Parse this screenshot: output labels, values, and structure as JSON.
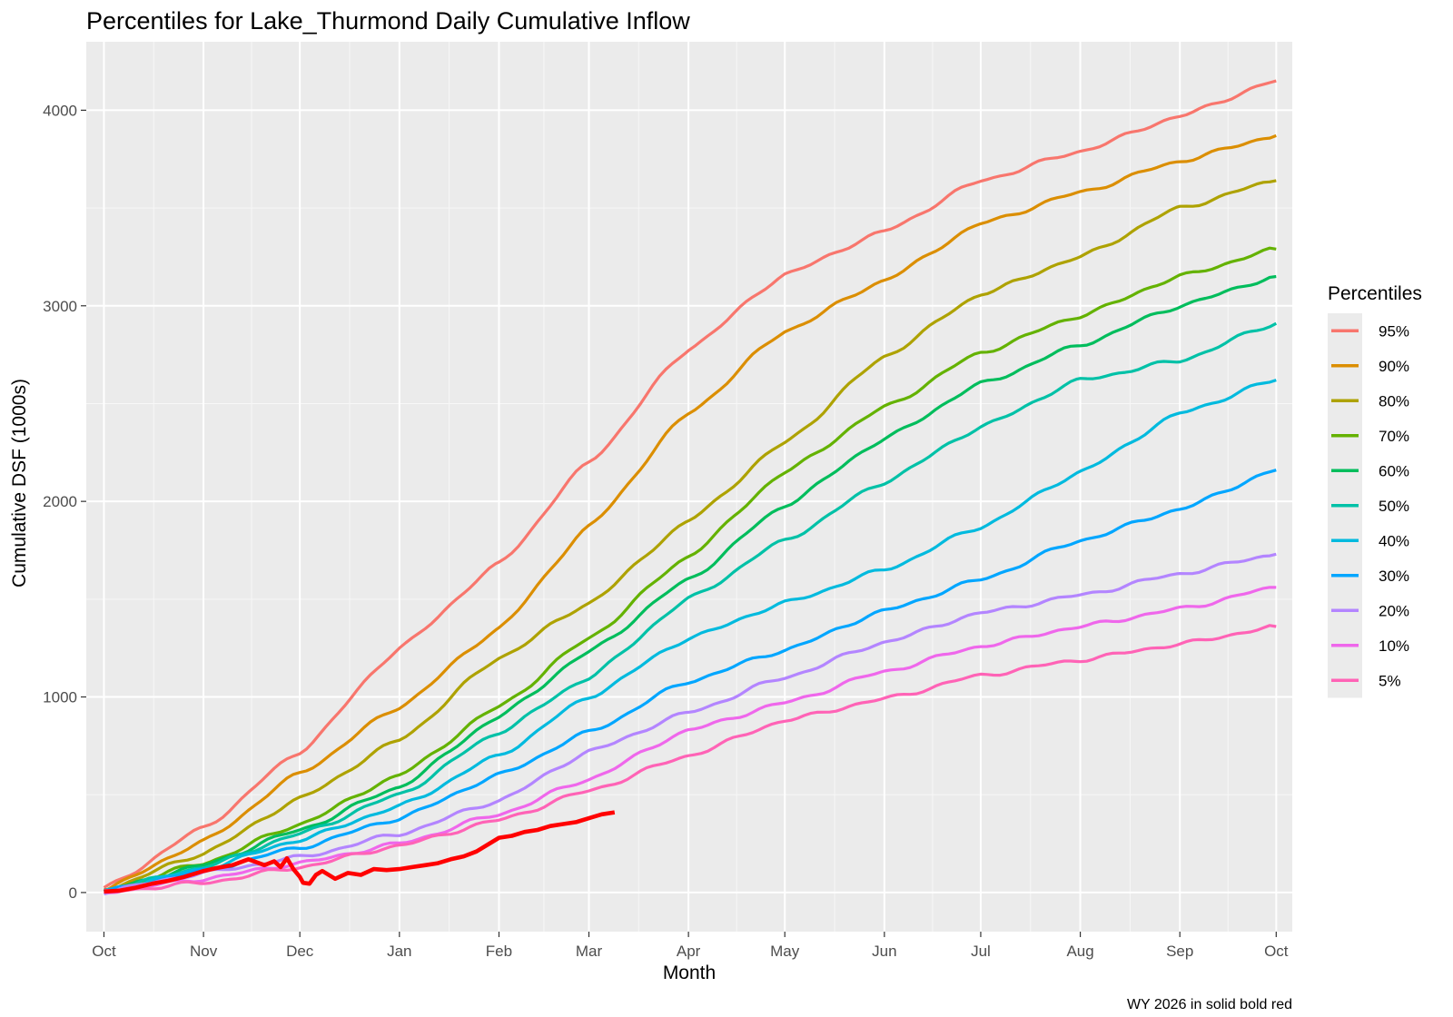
{
  "chart_data": {
    "type": "line",
    "title": "Percentiles for Lake_Thurmond Daily Cumulative Inflow",
    "xlabel": "Month",
    "ylabel": "Cumulative DSF (1000s)",
    "caption": "WY 2026 in solid  bold red",
    "x_ticks": [
      "Oct",
      "Nov",
      "Dec",
      "Jan",
      "Feb",
      "Mar",
      "Apr",
      "May",
      "Jun",
      "Jul",
      "Aug",
      "Sep",
      "Oct"
    ],
    "y_ticks": [
      0,
      1000,
      2000,
      3000,
      4000
    ],
    "ylim": [
      -200,
      4350
    ],
    "xlim_days": [
      -5.5,
      370
    ],
    "grid": true,
    "background": "#ebebeb",
    "legend": {
      "title": "Percentiles",
      "position": "right",
      "entries": [
        "95%",
        "90%",
        "80%",
        "70%",
        "60%",
        "50%",
        "40%",
        "30%",
        "20%",
        "10%",
        " 5%"
      ]
    },
    "x_unit": "days since Oct 1",
    "x": [
      0,
      31,
      61,
      92,
      123,
      151,
      182,
      212,
      243,
      273,
      304,
      335,
      365
    ],
    "series": [
      {
        "name": "95%",
        "color": "#F8766D",
        "values": [
          20,
          330,
          720,
          1250,
          1680,
          2200,
          2780,
          3160,
          3380,
          3640,
          3790,
          3970,
          4150
        ]
      },
      {
        "name": "90%",
        "color": "#DB8E00",
        "values": [
          15,
          260,
          610,
          950,
          1350,
          1870,
          2450,
          2870,
          3130,
          3420,
          3580,
          3740,
          3870
        ]
      },
      {
        "name": "80%",
        "color": "#AEA200",
        "values": [
          12,
          200,
          480,
          780,
          1200,
          1480,
          1900,
          2300,
          2740,
          3060,
          3250,
          3500,
          3640
        ]
      },
      {
        "name": "70%",
        "color": "#64B200",
        "values": [
          10,
          150,
          350,
          600,
          950,
          1300,
          1720,
          2150,
          2480,
          2760,
          2950,
          3150,
          3290
        ]
      },
      {
        "name": "60%",
        "color": "#00BD5C",
        "values": [
          8,
          140,
          320,
          540,
          900,
          1230,
          1600,
          1980,
          2320,
          2600,
          2800,
          3000,
          3150
        ]
      },
      {
        "name": "50%",
        "color": "#00C1A7",
        "values": [
          7,
          130,
          300,
          500,
          820,
          1100,
          1500,
          1800,
          2100,
          2380,
          2620,
          2720,
          2910
        ]
      },
      {
        "name": "40%",
        "color": "#00BADE",
        "values": [
          6,
          120,
          270,
          440,
          700,
          1000,
          1300,
          1480,
          1650,
          1870,
          2150,
          2450,
          2620
        ]
      },
      {
        "name": "30%",
        "color": "#00A6FF",
        "values": [
          6,
          110,
          230,
          380,
          600,
          820,
          1080,
          1240,
          1440,
          1600,
          1800,
          1960,
          2160
        ]
      },
      {
        "name": "20%",
        "color": "#B385FF",
        "values": [
          5,
          100,
          180,
          300,
          470,
          720,
          920,
          1100,
          1280,
          1430,
          1520,
          1630,
          1730
        ]
      },
      {
        "name": "10%",
        "color": "#EF67EB",
        "values": [
          4,
          70,
          150,
          250,
          400,
          580,
          830,
          970,
          1130,
          1260,
          1360,
          1450,
          1560
        ]
      },
      {
        "name": " 5%",
        "color": "#FF63B6",
        "values": [
          3,
          50,
          130,
          240,
          370,
          520,
          700,
          880,
          990,
          1110,
          1190,
          1270,
          1360
        ]
      }
    ],
    "highlight_series": {
      "name": "WY 2026",
      "color": "#FF0000",
      "x": [
        0,
        5,
        10,
        15,
        20,
        25,
        31,
        35,
        40,
        45,
        50,
        53,
        55,
        57,
        59,
        61,
        62,
        64,
        66,
        68,
        72,
        76,
        80,
        84,
        88,
        92,
        96,
        100,
        104,
        108,
        112,
        116,
        120,
        123,
        127,
        131,
        135,
        139,
        143,
        147,
        151,
        155,
        159
      ],
      "values": [
        5,
        10,
        25,
        45,
        60,
        80,
        110,
        125,
        140,
        170,
        140,
        160,
        130,
        175,
        120,
        80,
        50,
        45,
        90,
        110,
        70,
        100,
        90,
        120,
        115,
        120,
        130,
        140,
        150,
        170,
        185,
        210,
        250,
        280,
        290,
        310,
        320,
        340,
        350,
        360,
        380,
        400,
        410
      ]
    }
  }
}
